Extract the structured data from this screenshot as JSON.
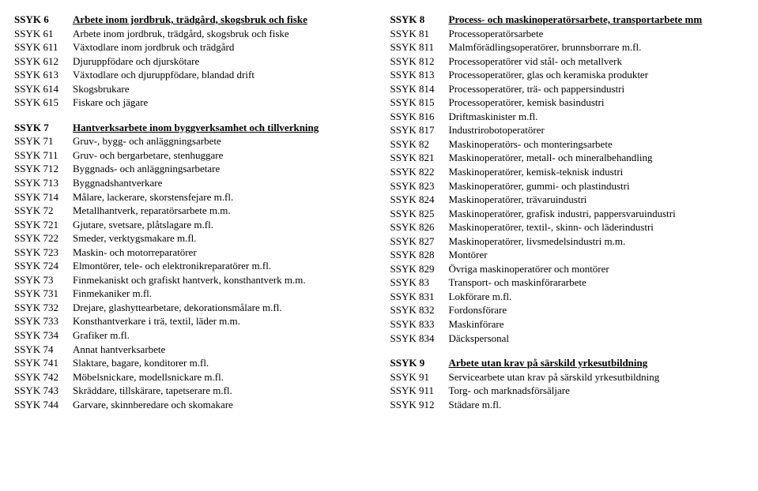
{
  "left": [
    {
      "type": "hdr",
      "code": "SSYK 6",
      "label": "Arbete inom jordbruk, trädgård, skogsbruk och fiske"
    },
    {
      "code": "SSYK 61",
      "label": "Arbete inom jordbruk, trädgård, skogsbruk och fiske"
    },
    {
      "code": "SSYK 611",
      "label": "Växtodlare inom jordbruk och trädgård"
    },
    {
      "code": "SSYK 612",
      "label": "Djuruppfödare och djurskötare"
    },
    {
      "code": "SSYK 613",
      "label": "Växtodlare och djuruppfödare, blandad drift"
    },
    {
      "code": "SSYK 614",
      "label": "Skogsbrukare"
    },
    {
      "code": "SSYK 615",
      "label": "Fiskare och jägare"
    },
    {
      "type": "spacer"
    },
    {
      "type": "hdr",
      "code": "SSYK 7",
      "label": "Hantverksarbete inom byggverksamhet och tillverkning"
    },
    {
      "code": "SSYK 71",
      "label": "Gruv-, bygg- och anläggningsarbete"
    },
    {
      "code": "SSYK 711",
      "label": "Gruv- och bergarbetare, stenhuggare"
    },
    {
      "code": "SSYK 712",
      "label": "Byggnads- och anläggningsarbetare"
    },
    {
      "code": "SSYK 713",
      "label": "Byggnadshantverkare"
    },
    {
      "code": "SSYK 714",
      "label": "Målare, lackerare, skorstensfejare m.fl."
    },
    {
      "code": "SSYK 72",
      "label": "Metallhantverk, reparatörsarbete m.m."
    },
    {
      "code": "SSYK 721",
      "label": "Gjutare, svetsare, plåtslagare m.fl."
    },
    {
      "code": "SSYK 722",
      "label": "Smeder, verktygsmakare m.fl."
    },
    {
      "code": "SSYK 723",
      "label": "Maskin- och motorreparatörer"
    },
    {
      "code": "SSYK 724",
      "label": "Elmontörer, tele- och elektronikreparatörer m.fl."
    },
    {
      "code": "SSYK 73",
      "label": "Finmekaniskt och grafiskt hantverk, konsthantverk m.m."
    },
    {
      "code": "SSYK 731",
      "label": "Finmekaniker m.fl."
    },
    {
      "code": "SSYK 732",
      "label": "Drejare, glashyttearbetare, dekorationsmålare m.fl."
    },
    {
      "code": "SSYK 733",
      "label": "Konsthantverkare i trä, textil, läder m.m."
    },
    {
      "code": "SSYK 734",
      "label": "Grafiker m.fl."
    },
    {
      "code": "SSYK 74",
      "label": "Annat hantverksarbete"
    },
    {
      "code": "SSYK 741",
      "label": "Slaktare, bagare, konditorer m.fl."
    },
    {
      "code": "SSYK 742",
      "label": "Möbelsnickare, modellsnickare m.fl."
    },
    {
      "code": "SSYK 743",
      "label": "Skräddare, tillskärare, tapetserare m.fl."
    },
    {
      "code": "SSYK 744",
      "label": "Garvare, skinnberedare och skomakare"
    }
  ],
  "right": [
    {
      "type": "hdr",
      "code": "SSYK 8",
      "label": "Process- och maskinoperatörsarbete, transportarbete mm"
    },
    {
      "code": "SSYK 81",
      "label": "Processoperatörsarbete"
    },
    {
      "code": "SSYK 811",
      "label": "Malmförädlingsoperatörer, brunnsborrare m.fl."
    },
    {
      "code": "SSYK 812",
      "label": "Processoperatörer vid stål- och metallverk"
    },
    {
      "code": "SSYK 813",
      "label": "Processoperatörer, glas och keramiska produkter"
    },
    {
      "code": "SSYK 814",
      "label": "Processoperatörer, trä- och pappersindustri"
    },
    {
      "code": "SSYK 815",
      "label": "Processoperatörer, kemisk basindustri"
    },
    {
      "code": "SSYK 816",
      "label": "Driftmaskinister m.fl."
    },
    {
      "code": "SSYK 817",
      "label": "Industrirobotoperatörer"
    },
    {
      "code": "SSYK 82",
      "label": "Maskinoperatörs- och monteringsarbete"
    },
    {
      "code": "SSYK 821",
      "label": "Maskinoperatörer, metall- och mineralbehandling"
    },
    {
      "code": "SSYK 822",
      "label": "Maskinoperatörer, kemisk-teknisk industri"
    },
    {
      "code": "SSYK 823",
      "label": "Maskinoperatörer, gummi- och plastindustri"
    },
    {
      "code": "SSYK 824",
      "label": "Maskinoperatörer, trävaruindustri"
    },
    {
      "code": "SSYK 825",
      "label": "Maskinoperatörer, grafisk industri, pappersvaruindustri"
    },
    {
      "code": "SSYK 826",
      "label": "Maskinoperatörer, textil-, skinn- och läderindustri"
    },
    {
      "code": "SSYK 827",
      "label": "Maskinoperatörer, livsmedelsindustri m.m."
    },
    {
      "code": "SSYK 828",
      "label": "Montörer"
    },
    {
      "code": "SSYK 829",
      "label": "Övriga maskinoperatörer och montörer"
    },
    {
      "code": "SSYK 83",
      "label": "Transport- och maskinförararbete"
    },
    {
      "code": "SSYK 831",
      "label": "Lokförare m.fl."
    },
    {
      "code": "SSYK 832",
      "label": "Fordonsförare"
    },
    {
      "code": "SSYK 833",
      "label": "Maskinförare"
    },
    {
      "code": "SSYK 834",
      "label": "Däckspersonal"
    },
    {
      "type": "spacer"
    },
    {
      "type": "hdr",
      "code": "SSYK 9",
      "label": "Arbete utan krav på särskild yrkesutbildning"
    },
    {
      "code": "SSYK 91",
      "label": "Servicearbete utan krav på särskild yrkesutbildning"
    },
    {
      "code": "SSYK 911",
      "label": "Torg- och marknadsförsäljare"
    },
    {
      "code": "SSYK 912",
      "label": "Städare m.fl."
    }
  ]
}
